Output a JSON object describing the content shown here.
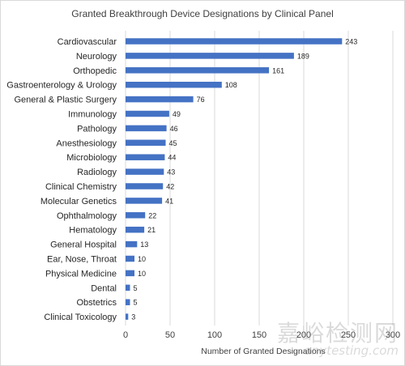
{
  "chart_data": {
    "type": "bar",
    "orientation": "horizontal",
    "title": "Granted Breakthrough Device Designations by Clinical Panel",
    "xlabel": "Number of Granted Designations",
    "ylabel": "",
    "xlim": [
      0,
      300
    ],
    "xticks": [
      0,
      50,
      100,
      150,
      200,
      250,
      300
    ],
    "grid": "vertical",
    "legend": "none",
    "bar_color": "#4472C4",
    "categories": [
      "Cardiovascular",
      "Neurology",
      "Orthopedic",
      "Gastroenterology & Urology",
      "General & Plastic Surgery",
      "Immunology",
      "Pathology",
      "Anesthesiology",
      "Microbiology",
      "Radiology",
      "Clinical Chemistry",
      "Molecular Genetics",
      "Ophthalmology",
      "Hematology",
      "General Hospital",
      "Ear, Nose, Throat",
      "Physical Medicine",
      "Dental",
      "Obstetrics",
      "Clinical Toxicology"
    ],
    "values": [
      243,
      189,
      161,
      108,
      76,
      49,
      46,
      45,
      44,
      43,
      42,
      41,
      22,
      21,
      13,
      10,
      10,
      5,
      5,
      3
    ]
  },
  "watermark": {
    "text": "嘉峪检测网",
    "url_text": "anytesting.com"
  }
}
